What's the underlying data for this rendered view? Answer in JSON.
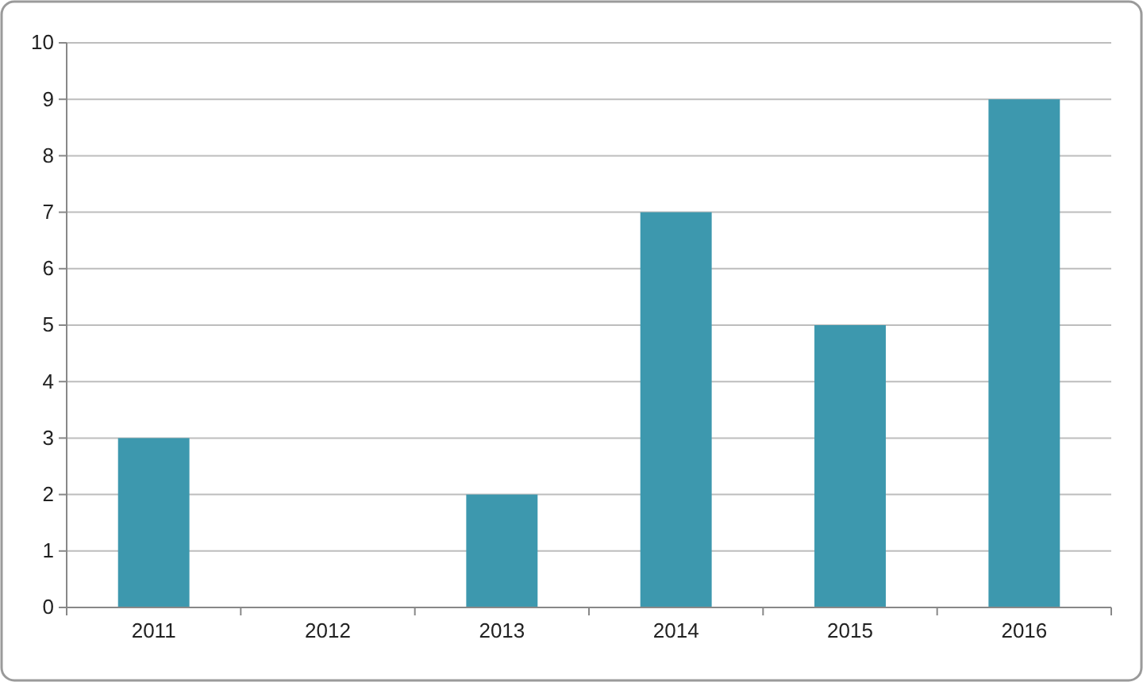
{
  "chart_data": {
    "type": "bar",
    "categories": [
      "2011",
      "2012",
      "2013",
      "2014",
      "2015",
      "2016"
    ],
    "values": [
      3,
      0,
      2,
      7,
      5,
      9
    ],
    "color": "#3d98ae",
    "ylim": [
      0,
      10
    ],
    "yticks": [
      0,
      1,
      2,
      3,
      4,
      5,
      6,
      7,
      8,
      9,
      10
    ],
    "grid": "y"
  }
}
